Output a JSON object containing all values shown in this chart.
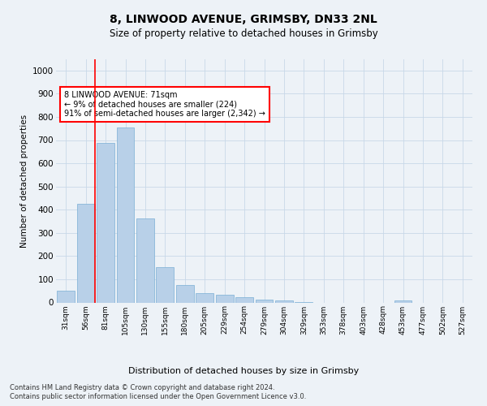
{
  "title": "8, LINWOOD AVENUE, GRIMSBY, DN33 2NL",
  "subtitle": "Size of property relative to detached houses in Grimsby",
  "xlabel": "Distribution of detached houses by size in Grimsby",
  "ylabel": "Number of detached properties",
  "bar_color": "#b8d0e8",
  "bar_edge_color": "#7aafd4",
  "grid_color": "#c8d8e8",
  "background_color": "#edf2f7",
  "vline_color": "red",
  "vline_index": 1,
  "categories": [
    "31sqm",
    "56sqm",
    "81sqm",
    "105sqm",
    "130sqm",
    "155sqm",
    "180sqm",
    "205sqm",
    "229sqm",
    "254sqm",
    "279sqm",
    "304sqm",
    "329sqm",
    "353sqm",
    "378sqm",
    "403sqm",
    "428sqm",
    "453sqm",
    "477sqm",
    "502sqm",
    "527sqm"
  ],
  "values": [
    52,
    425,
    687,
    756,
    362,
    152,
    75,
    40,
    33,
    24,
    13,
    9,
    3,
    0,
    0,
    0,
    0,
    8,
    0,
    0,
    0
  ],
  "ylim": [
    0,
    1050
  ],
  "yticks": [
    0,
    100,
    200,
    300,
    400,
    500,
    600,
    700,
    800,
    900,
    1000
  ],
  "annotation_text": "8 LINWOOD AVENUE: 71sqm\n← 9% of detached houses are smaller (224)\n91% of semi-detached houses are larger (2,342) →",
  "annotation_box_color": "white",
  "annotation_box_edge_color": "red",
  "footer_line1": "Contains HM Land Registry data © Crown copyright and database right 2024.",
  "footer_line2": "Contains public sector information licensed under the Open Government Licence v3.0."
}
